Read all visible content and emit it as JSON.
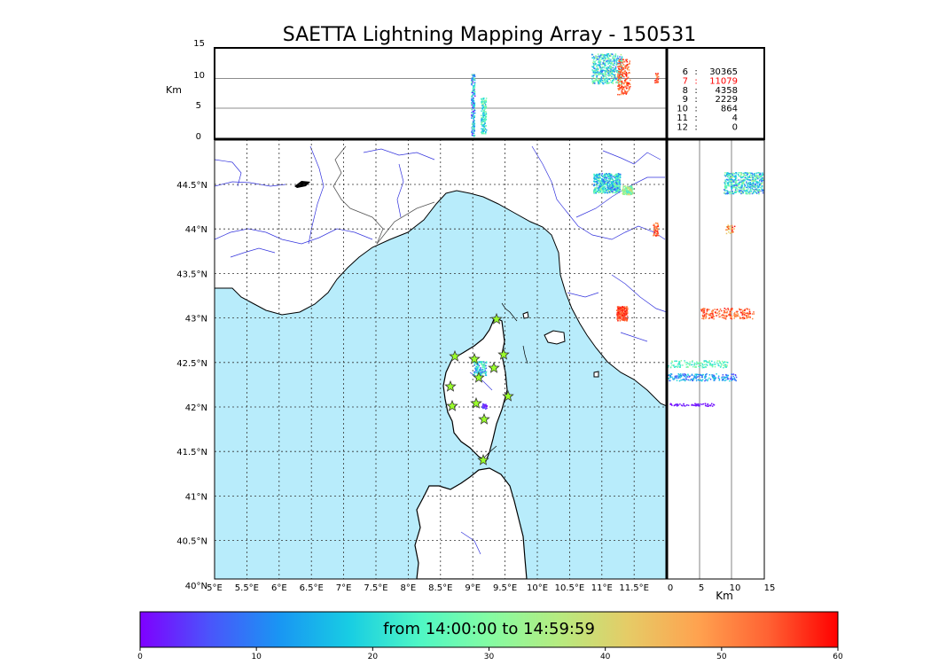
{
  "title": "SAETTA Lightning Mapping Array - 150531",
  "altitude_panel": {
    "unit_label": "Km",
    "ticks": [
      "15",
      "10",
      "5",
      "0"
    ]
  },
  "side_panel": {
    "unit_label": "Km",
    "ticks": [
      "0",
      "5",
      "10",
      "15"
    ]
  },
  "counts": [
    {
      "label": "6",
      "value": "30365",
      "color": "#000000"
    },
    {
      "label": "7",
      "value": "11079",
      "color": "#ff0000"
    },
    {
      "label": "8",
      "value": "4358",
      "color": "#000000"
    },
    {
      "label": "9",
      "value": "2229",
      "color": "#000000"
    },
    {
      "label": "10",
      "value": "864",
      "color": "#000000"
    },
    {
      "label": "11",
      "value": "4",
      "color": "#000000"
    },
    {
      "label": "12",
      "value": "0",
      "color": "#000000"
    }
  ],
  "map": {
    "lon_ticks": [
      "5°E",
      "5.5°E",
      "6°E",
      "6.5°E",
      "7°E",
      "7.5°E",
      "8°E",
      "8.5°E",
      "9°E",
      "9.5°E",
      "10°E",
      "10.5°E",
      "11°E",
      "11.5°E"
    ],
    "lat_ticks": [
      "44.5°N",
      "44°N",
      "43.5°N",
      "43°N",
      "42.5°N",
      "42°N",
      "41.5°N",
      "41°N",
      "40.5°N",
      "40°N"
    ],
    "sea_color": "#b8ecfb",
    "station_marker": "star",
    "station_color": "#9aff2a"
  },
  "colorbar": {
    "label": "from 14:00:00 to 14:59:59",
    "ticks": [
      "0",
      "10",
      "20",
      "30",
      "40",
      "50",
      "60"
    ],
    "colors": [
      "#7f00ff",
      "#4a55fb",
      "#1996f3",
      "#18cde3",
      "#4ef7c5",
      "#84fca3",
      "#b6eb80",
      "#e6cb66",
      "#ffa24f",
      "#ff6233",
      "#ff0000"
    ]
  }
}
